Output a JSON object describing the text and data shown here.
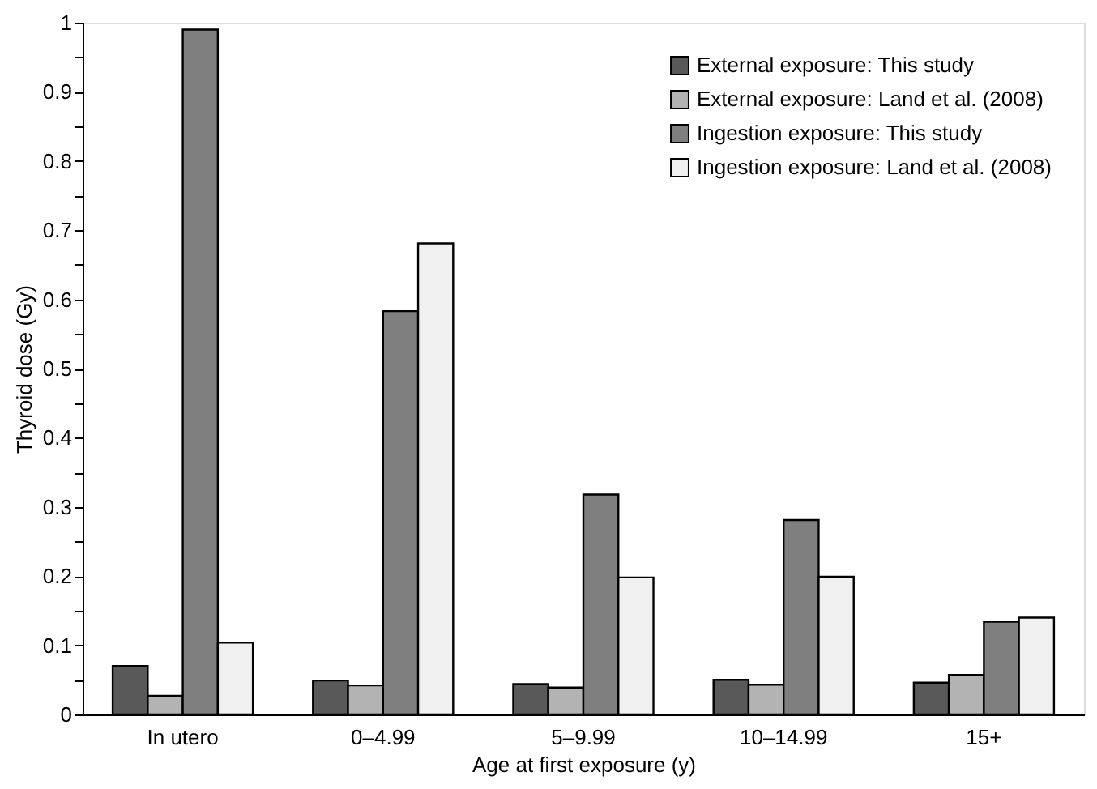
{
  "chart_data": {
    "type": "bar",
    "xlabel": "Age at first exposure (y)",
    "ylabel": "Thyroid dose (Gy)",
    "categories": [
      "In utero",
      "0–4.99",
      "5–9.99",
      "10–14.99",
      "15+"
    ],
    "series": [
      {
        "name": "External exposure: This study",
        "color": "#595959",
        "values": [
          0.07,
          0.049,
          0.044,
          0.05,
          0.046
        ]
      },
      {
        "name": "External exposure: Land et al. (2008)",
        "color": "#b3b3b3",
        "values": [
          0.027,
          0.042,
          0.039,
          0.043,
          0.057
        ]
      },
      {
        "name": "Ingestion exposure: This study",
        "color": "#7f7f7f",
        "values": [
          0.99,
          0.583,
          0.318,
          0.281,
          0.134
        ]
      },
      {
        "name": "Ingestion exposure: Land et al. (2008)",
        "color": "#f0f0f0",
        "values": [
          0.104,
          0.681,
          0.198,
          0.199,
          0.14
        ]
      }
    ],
    "ylim": [
      0,
      1
    ],
    "yticks": [
      0,
      {
        "value": 0.05,
        "label": null
      },
      0.1,
      {
        "value": 0.15,
        "label": null
      },
      0.2,
      {
        "value": 0.25,
        "label": null
      },
      0.3,
      {
        "value": 0.35,
        "label": null
      },
      0.4,
      {
        "value": 0.45,
        "label": null
      },
      0.5,
      {
        "value": 0.55,
        "label": null
      },
      0.6,
      {
        "value": 0.65,
        "label": null
      },
      0.7,
      {
        "value": 0.75,
        "label": null
      },
      0.8,
      {
        "value": 0.85,
        "label": null
      },
      0.9,
      {
        "value": 0.95,
        "label": null
      },
      1
    ],
    "legend": "top right",
    "grid": false
  }
}
